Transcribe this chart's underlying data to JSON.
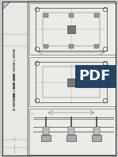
{
  "bg_color": "#c8c8c8",
  "paper_color": "#f0f0ec",
  "border_color": "#444444",
  "line_color": "#333333",
  "title_lines": [
    "30.05.13 - Rev.0",
    "SKETCH SHOWING EXISTING & PROPOSED",
    "FOOTING & COLUMN LAYOUT",
    "IN PHASE 1 AREA"
  ],
  "stamp_bg": "#1a3a5c",
  "stamp_text_color": "#ffffff",
  "stamp_text": "PDF",
  "title_bg": "#e8e8e4",
  "panel_bg": "#ebebE7",
  "fold_color": "#b0b0b0"
}
